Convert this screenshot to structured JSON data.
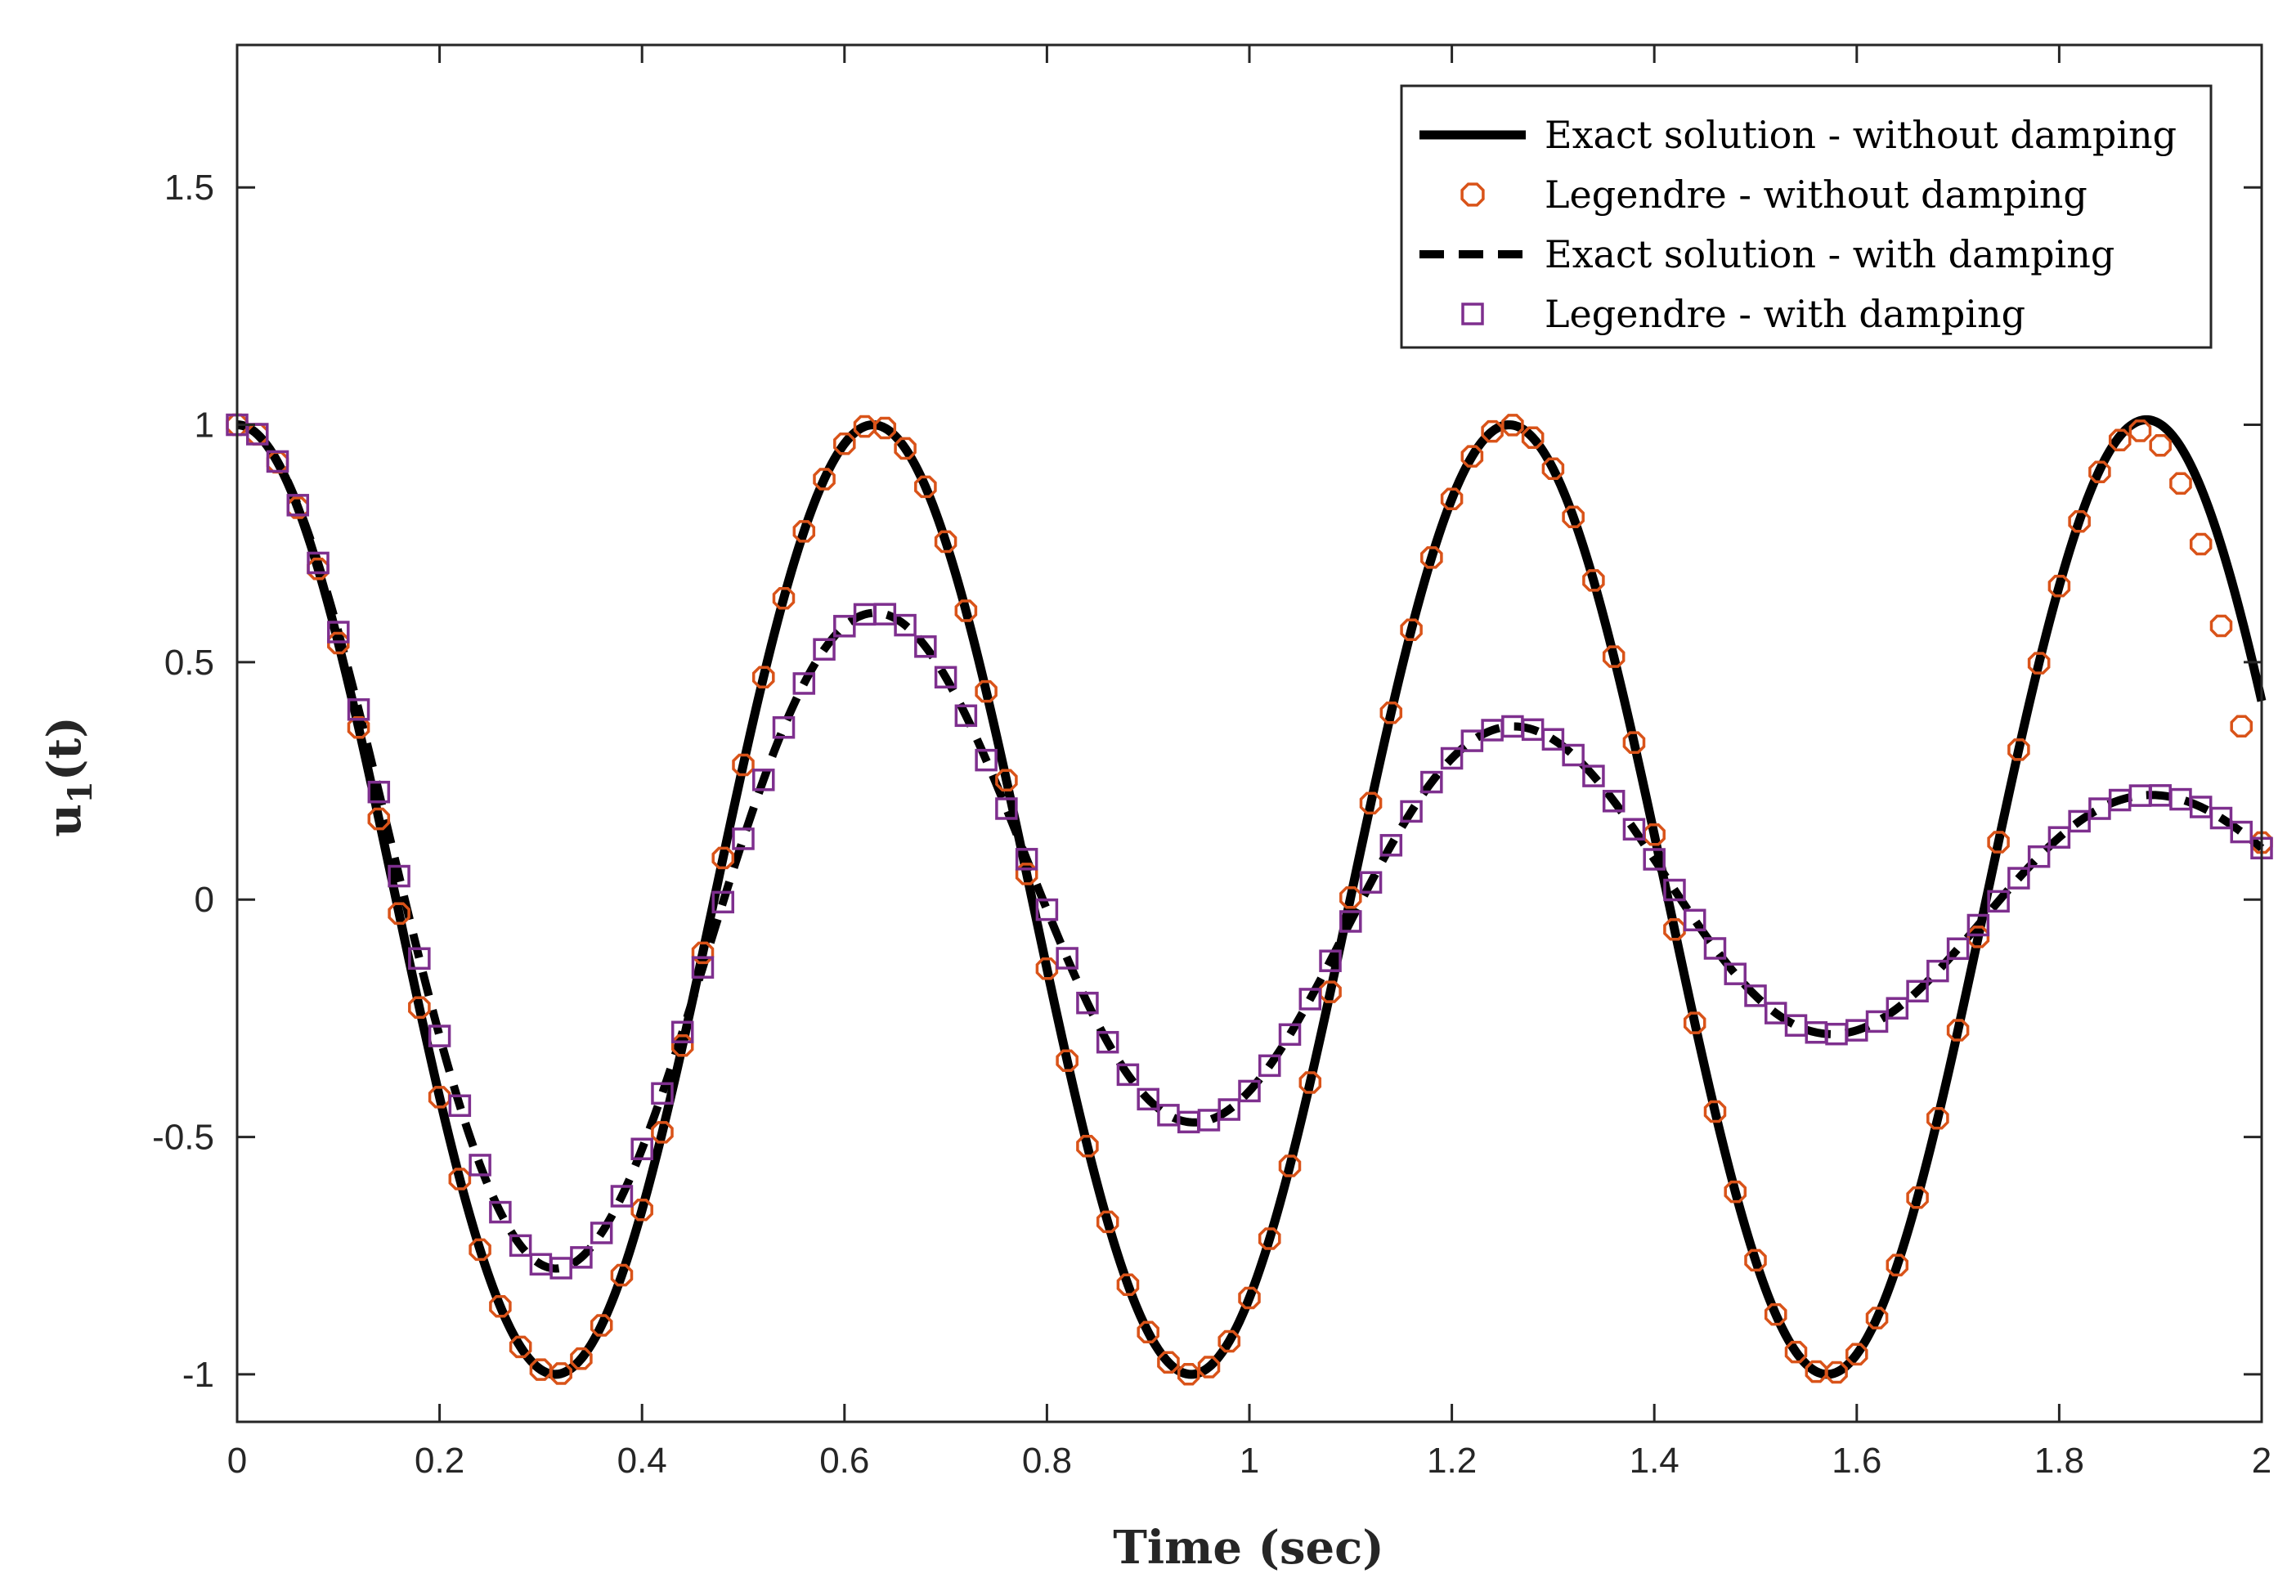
{
  "chart_data": {
    "type": "line",
    "title": "",
    "xlabel": "Time (sec)",
    "ylabel_main": "u",
    "ylabel_sub": "1",
    "ylabel_tail": "(t)",
    "xlim": [
      0,
      2
    ],
    "ylim": [
      -1.1,
      1.8
    ],
    "xticks": [
      0,
      0.2,
      0.4,
      0.6,
      0.8,
      1,
      1.2,
      1.4,
      1.6,
      1.8,
      2
    ],
    "xtick_labels": [
      "0",
      "0.2",
      "0.4",
      "0.6",
      "0.8",
      "1",
      "1.2",
      "1.4",
      "1.6",
      "1.8",
      "2"
    ],
    "yticks": [
      -1,
      -0.5,
      0,
      0.5,
      1,
      1.5
    ],
    "ytick_labels": [
      "-1",
      "-0.5",
      "0",
      "0.5",
      "1",
      "1.5"
    ],
    "grid": false,
    "legend_position": "top-right",
    "colors": {
      "exact": "#000000",
      "legendre_undamped": "#D95319",
      "legendre_damped": "#7E2F8E",
      "axis": "#262626"
    },
    "series": [
      {
        "name": "Exact solution - without damping",
        "style": "solid-line",
        "omega": 10,
        "zeta": 0,
        "t_end": 2.0,
        "color": "#000000"
      },
      {
        "name": "Legendre - without damping",
        "style": "circle-markers",
        "omega": 10,
        "zeta": 0,
        "t_start": 0,
        "t_step": 0.02,
        "count": 101,
        "color": "#D95319"
      },
      {
        "name": "Exact solution - with damping",
        "style": "dashed-line",
        "omega": 10,
        "zeta": 0.08,
        "t_end": 2.0,
        "color": "#000000"
      },
      {
        "name": "Legendre - with damping",
        "style": "square-markers",
        "omega": 10,
        "zeta": 0.08,
        "t_start": 0,
        "t_step": 0.02,
        "count": 101,
        "color": "#7E2F8E"
      }
    ],
    "annotation": "numerical Legendre markers deviate slightly from the undamped exact curve near t = 1.9-2.0 (circles ~0.99 at 1.88, ~0.41 at 2.0)"
  }
}
